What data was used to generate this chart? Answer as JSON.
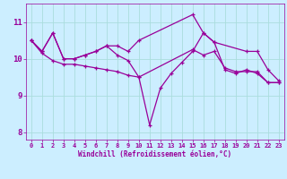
{
  "xlabel": "Windchill (Refroidissement éolien,°C)",
  "xlim": [
    -0.5,
    23.5
  ],
  "ylim": [
    7.8,
    11.5
  ],
  "yticks": [
    8,
    9,
    10,
    11
  ],
  "xticks": [
    0,
    1,
    2,
    3,
    4,
    5,
    6,
    7,
    8,
    9,
    10,
    11,
    12,
    13,
    14,
    15,
    16,
    17,
    18,
    19,
    20,
    21,
    22,
    23
  ],
  "bg_color": "#cceeff",
  "grid_color": "#aadddd",
  "line_color": "#990099",
  "series": [
    {
      "name": "line1_upper",
      "x": [
        0,
        1,
        2,
        3,
        4,
        5,
        6,
        7,
        8,
        9,
        10,
        15,
        16,
        17,
        20,
        21,
        22,
        23
      ],
      "y": [
        10.5,
        10.2,
        10.7,
        10.0,
        10.0,
        10.1,
        10.2,
        10.35,
        10.35,
        10.2,
        10.5,
        11.2,
        10.7,
        10.45,
        10.2,
        10.2,
        9.7,
        9.4
      ]
    },
    {
      "name": "line2_dip",
      "x": [
        0,
        1,
        2,
        3,
        4,
        5,
        6,
        7,
        8,
        9,
        10,
        11,
        12,
        13,
        14,
        15,
        16,
        17,
        18,
        19,
        20,
        21,
        22,
        23
      ],
      "y": [
        10.5,
        10.2,
        10.7,
        10.0,
        10.0,
        10.1,
        10.2,
        10.35,
        10.1,
        9.95,
        9.5,
        8.2,
        9.2,
        9.6,
        9.9,
        10.2,
        10.7,
        10.45,
        9.7,
        9.6,
        9.7,
        9.6,
        9.35,
        9.35
      ]
    },
    {
      "name": "line3_lower",
      "x": [
        0,
        1,
        2,
        3,
        4,
        5,
        6,
        7,
        8,
        9,
        10,
        15,
        16,
        17,
        18,
        19,
        20,
        21,
        22,
        23
      ],
      "y": [
        10.5,
        10.15,
        9.95,
        9.85,
        9.85,
        9.8,
        9.75,
        9.7,
        9.65,
        9.55,
        9.5,
        10.25,
        10.1,
        10.2,
        9.75,
        9.65,
        9.65,
        9.65,
        9.35,
        9.35
      ]
    }
  ]
}
